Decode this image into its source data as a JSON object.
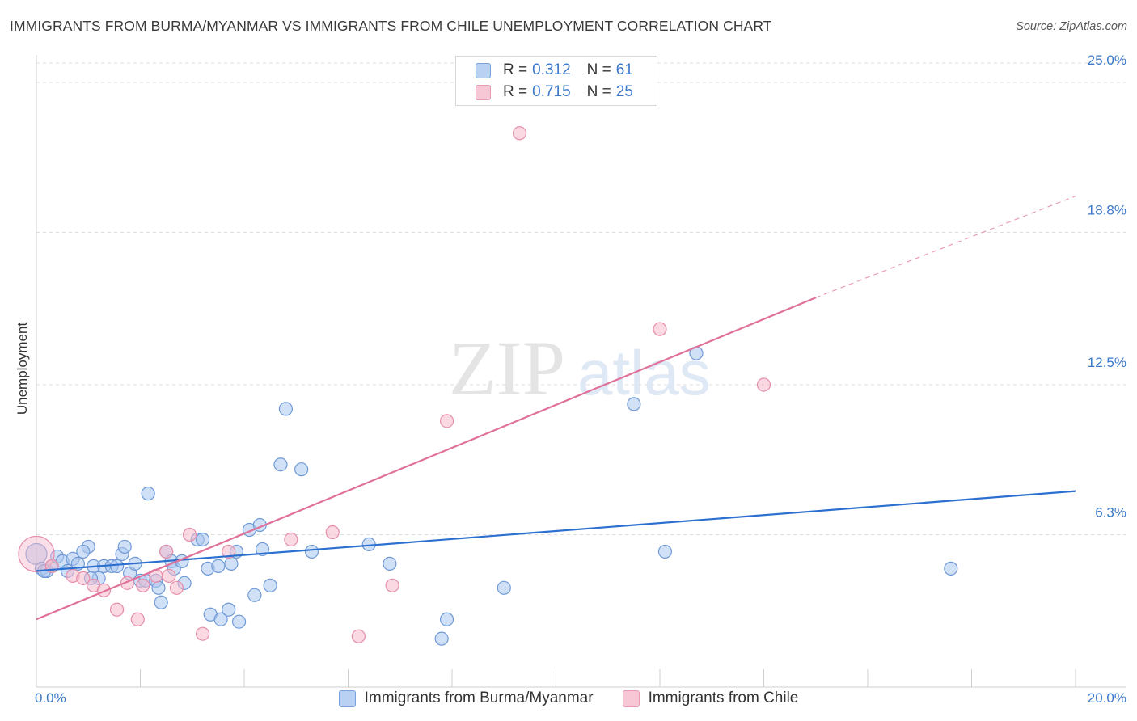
{
  "title": "IMMIGRANTS FROM BURMA/MYANMAR VS IMMIGRANTS FROM CHILE UNEMPLOYMENT CORRELATION CHART",
  "source": "Source: ZipAtlas.com",
  "watermark": {
    "zip": "ZIP",
    "atlas": "atlas"
  },
  "legend_top": {
    "r_label": "R =",
    "n_label": "N =",
    "rows": [
      {
        "r": "0.312",
        "n": "61"
      },
      {
        "r": "0.715",
        "n": "25"
      }
    ]
  },
  "legend_bottom": [
    "Immigrants from Burma/Myanmar",
    "Immigrants from Chile"
  ],
  "colors": {
    "blue_fill": "#a9c6ef",
    "blue_stroke": "#6f9ad6",
    "blue_line": "#2b6fd0",
    "pink_fill": "#f6b9cc",
    "pink_stroke": "#e58ea9",
    "pink_line": "#e0719a",
    "tick_text": "#3b78c9",
    "grid": "#dcdcdc"
  },
  "chart_data": {
    "type": "scatter",
    "title": "IMMIGRANTS FROM BURMA/MYANMAR VS IMMIGRANTS FROM CHILE UNEMPLOYMENT CORRELATION CHART",
    "xlabel": "",
    "ylabel": "Unemployment",
    "xlim": [
      0,
      20
    ],
    "ylim": [
      0,
      25.8
    ],
    "x_ticks_labels": [
      {
        "v": 0,
        "label": "0.0%"
      },
      {
        "v": 20,
        "label": "20.0%"
      }
    ],
    "y_ticks": [
      {
        "v": 6.3,
        "label": "6.3%"
      },
      {
        "v": 12.5,
        "label": "12.5%"
      },
      {
        "v": 18.8,
        "label": "18.8%"
      },
      {
        "v": 25.0,
        "label": "25.0%"
      }
    ],
    "series": [
      {
        "name": "Immigrants from Burma/Myanmar",
        "color": "blue",
        "R": 0.312,
        "N": 61,
        "trend": {
          "x0": 0,
          "y0": 4.8,
          "x1": 20,
          "y1": 8.1
        },
        "points": [
          [
            0.0,
            5.5
          ],
          [
            0.1,
            4.9
          ],
          [
            0.2,
            4.8
          ],
          [
            0.3,
            5.0
          ],
          [
            0.4,
            5.4
          ],
          [
            0.5,
            5.2
          ],
          [
            0.6,
            4.8
          ],
          [
            0.7,
            5.3
          ],
          [
            0.8,
            5.1
          ],
          [
            1.0,
            5.8
          ],
          [
            1.1,
            5.0
          ],
          [
            1.2,
            4.5
          ],
          [
            1.3,
            5.0
          ],
          [
            1.45,
            5.0
          ],
          [
            1.55,
            5.0
          ],
          [
            1.65,
            5.5
          ],
          [
            1.7,
            5.8
          ],
          [
            1.8,
            4.7
          ],
          [
            1.9,
            5.1
          ],
          [
            2.0,
            4.4
          ],
          [
            2.1,
            4.4
          ],
          [
            2.15,
            8.0
          ],
          [
            2.3,
            4.4
          ],
          [
            2.35,
            4.1
          ],
          [
            2.4,
            3.5
          ],
          [
            2.5,
            5.6
          ],
          [
            2.6,
            5.2
          ],
          [
            2.65,
            4.9
          ],
          [
            2.8,
            5.2
          ],
          [
            2.85,
            4.3
          ],
          [
            3.1,
            6.1
          ],
          [
            3.2,
            6.1
          ],
          [
            3.3,
            4.9
          ],
          [
            3.35,
            3.0
          ],
          [
            3.5,
            5.0
          ],
          [
            3.55,
            2.8
          ],
          [
            3.7,
            3.2
          ],
          [
            3.75,
            5.1
          ],
          [
            3.85,
            5.6
          ],
          [
            3.9,
            2.7
          ],
          [
            4.1,
            6.5
          ],
          [
            4.2,
            3.8
          ],
          [
            4.3,
            6.7
          ],
          [
            4.35,
            5.7
          ],
          [
            4.5,
            4.2
          ],
          [
            4.7,
            9.2
          ],
          [
            4.8,
            11.5
          ],
          [
            5.1,
            9.0
          ],
          [
            5.3,
            5.6
          ],
          [
            6.4,
            5.9
          ],
          [
            6.8,
            5.1
          ],
          [
            7.9,
            2.8
          ],
          [
            7.8,
            2.0
          ],
          [
            9.0,
            4.1
          ],
          [
            11.5,
            11.7
          ],
          [
            12.1,
            5.6
          ],
          [
            12.7,
            13.8
          ],
          [
            17.6,
            4.9
          ],
          [
            0.15,
            4.8
          ],
          [
            0.9,
            5.6
          ],
          [
            1.05,
            4.5
          ]
        ]
      },
      {
        "name": "Immigrants from Chile",
        "color": "pink",
        "R": 0.715,
        "N": 25,
        "trend": {
          "x0": 0,
          "y0": 2.8,
          "x1": 15.0,
          "y1": 16.1
        },
        "trend_dashed": {
          "x0": 15.0,
          "y0": 16.1,
          "x1": 20,
          "y1": 20.3
        },
        "points": [
          [
            0.0,
            5.5
          ],
          [
            0.3,
            5.0
          ],
          [
            0.7,
            4.6
          ],
          [
            0.9,
            4.5
          ],
          [
            1.1,
            4.2
          ],
          [
            1.3,
            4.0
          ],
          [
            1.55,
            3.2
          ],
          [
            1.75,
            4.3
          ],
          [
            1.95,
            2.8
          ],
          [
            2.05,
            4.2
          ],
          [
            2.3,
            4.6
          ],
          [
            2.5,
            5.6
          ],
          [
            2.7,
            4.1
          ],
          [
            2.95,
            6.3
          ],
          [
            3.2,
            2.2
          ],
          [
            3.7,
            5.6
          ],
          [
            4.9,
            6.1
          ],
          [
            5.7,
            6.4
          ],
          [
            6.2,
            2.1
          ],
          [
            6.85,
            4.2
          ],
          [
            7.9,
            11.0
          ],
          [
            9.3,
            22.9
          ],
          [
            12.0,
            14.8
          ],
          [
            14.0,
            12.5
          ],
          [
            2.55,
            4.6
          ]
        ]
      }
    ]
  }
}
